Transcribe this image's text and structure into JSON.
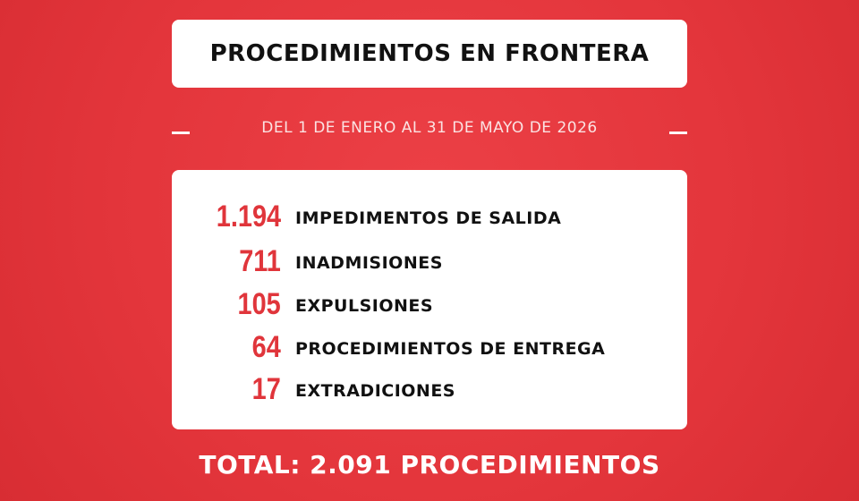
{
  "header": {
    "title": "PROCEDIMIENTOS EN FRONTERA",
    "subtitle": "DEL 1 DE ENERO AL 31 DE MAYO DE 2026"
  },
  "items": [
    {
      "number": "1.194",
      "label": "IMPEDIMENTOS DE SALIDA"
    },
    {
      "number": "711",
      "label": "INADMISIONES"
    },
    {
      "number": "105",
      "label": "EXPULSIONES"
    },
    {
      "number": "64",
      "label": "PROCEDIMIENTOS DE ENTREGA"
    },
    {
      "number": "17",
      "label": "EXTRADICIONES"
    }
  ],
  "footer": {
    "total": "TOTAL: 2.091 PROCEDIMIENTOS"
  }
}
